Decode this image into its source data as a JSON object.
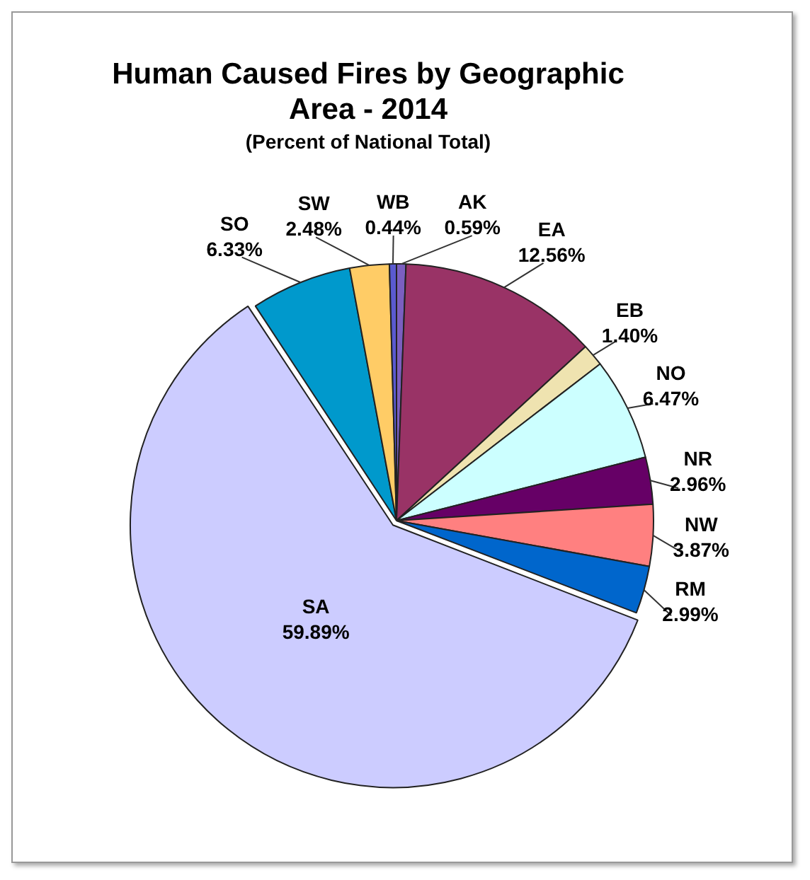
{
  "chart_data": {
    "type": "pie",
    "title": "Human Caused Fires by Geographic Area - 2014",
    "subtitle": "(Percent of National Total)",
    "categories": [
      "AK",
      "EA",
      "EB",
      "NO",
      "NR",
      "NW",
      "RM",
      "SA",
      "SO",
      "SW",
      "WB"
    ],
    "values": [
      0.59,
      12.56,
      1.4,
      6.47,
      2.96,
      3.87,
      2.99,
      59.89,
      6.33,
      2.48,
      0.44
    ],
    "colors": [
      "#7b5fc0",
      "#993366",
      "#efe3b0",
      "#ccffff",
      "#660066",
      "#ff8080",
      "#0066cc",
      "#ccccff",
      "#0099cc",
      "#ffcc66",
      "#5a5ad0"
    ],
    "value_labels": [
      "0.59%",
      "12.56%",
      "1.40%",
      "6.47%",
      "2.96%",
      "3.87%",
      "2.99%",
      "59.89%",
      "6.33%",
      "2.48%",
      "0.44%"
    ],
    "legend": false
  }
}
